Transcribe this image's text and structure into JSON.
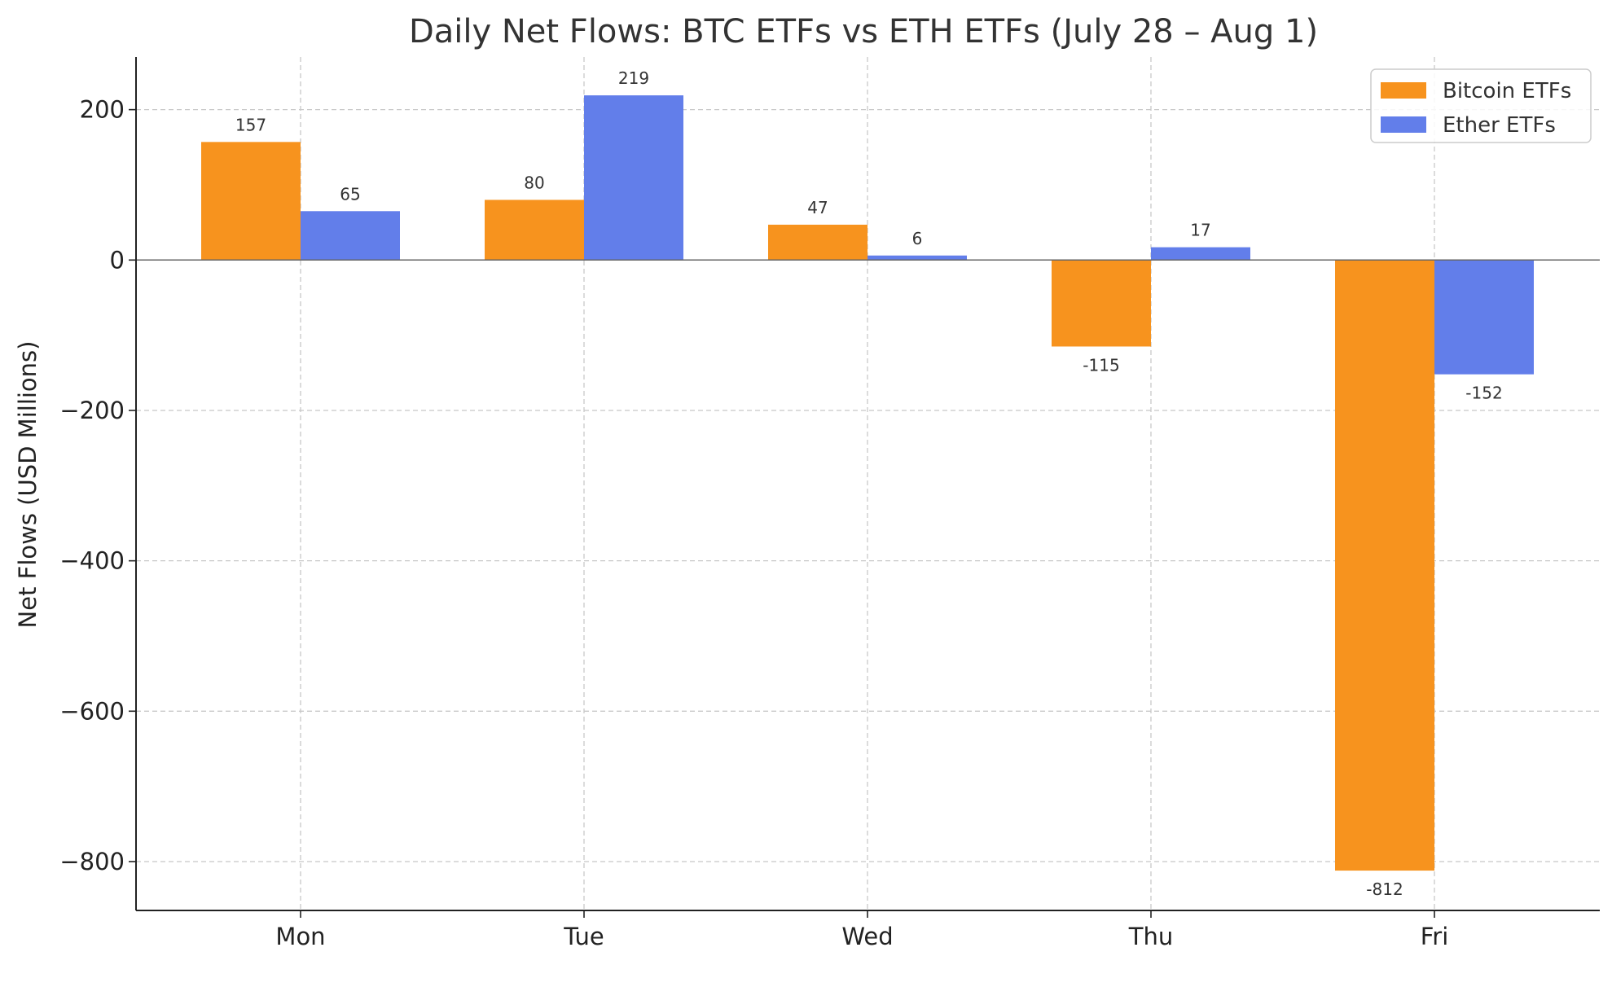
{
  "chart_data": {
    "type": "bar",
    "title": "Daily Net Flows: BTC ETFs vs ETH ETFs (July 28 – Aug 1)",
    "xlabel": "",
    "ylabel": "Net Flows (USD Millions)",
    "categories": [
      "Mon",
      "Tue",
      "Wed",
      "Thu",
      "Fri"
    ],
    "series": [
      {
        "name": "Bitcoin ETFs",
        "color": "#f7931e",
        "values": [
          157,
          80,
          47,
          -115,
          -812
        ]
      },
      {
        "name": "Ether ETFs",
        "color": "#627eea",
        "values": [
          65,
          219,
          6,
          17,
          -152
        ]
      }
    ],
    "ylim": [
      -865,
      270
    ],
    "yticks": [
      200,
      0,
      -200,
      -400,
      -600,
      -800
    ],
    "ytick_labels": [
      "200",
      "0",
      "−200",
      "−400",
      "−600",
      "−800"
    ],
    "grid": true,
    "legend": "top-right"
  }
}
